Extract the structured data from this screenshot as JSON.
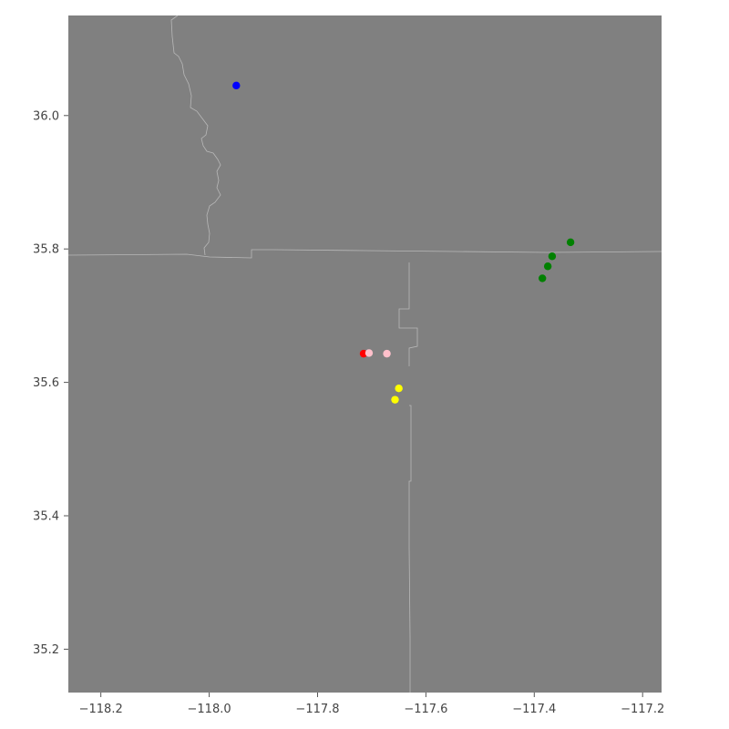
{
  "chart_data": {
    "type": "scatter",
    "title": "",
    "xlabel": "",
    "ylabel": "",
    "xlim": [
      -118.26,
      -117.165
    ],
    "ylim": [
      35.135,
      36.15
    ],
    "grid": false,
    "background": "#808080",
    "x_ticks": [
      -118.2,
      -118.0,
      -117.8,
      -117.6,
      -117.4,
      -117.2
    ],
    "x_tick_labels": [
      "−118.2",
      "−118.0",
      "−117.8",
      "−117.6",
      "−117.4",
      "−117.2"
    ],
    "y_ticks": [
      35.2,
      35.4,
      35.6,
      35.8,
      36.0
    ],
    "y_tick_labels": [
      "35.2",
      "35.4",
      "35.6",
      "35.8",
      "36.0"
    ],
    "series": [
      {
        "color": "#0000ff",
        "points": [
          [
            -117.95,
            36.045
          ]
        ]
      },
      {
        "color": "#008000",
        "points": [
          [
            -117.333,
            35.81
          ],
          [
            -117.367,
            35.789
          ],
          [
            -117.375,
            35.774
          ],
          [
            -117.385,
            35.756
          ]
        ]
      },
      {
        "color": "#ff0000",
        "points": [
          [
            -117.715,
            35.643
          ]
        ]
      },
      {
        "color": "#ffc0cb",
        "points": [
          [
            -117.705,
            35.644
          ],
          [
            -117.672,
            35.643
          ]
        ]
      },
      {
        "color": "#ffff00",
        "points": [
          [
            -117.65,
            35.591
          ],
          [
            -117.657,
            35.574
          ]
        ]
      }
    ]
  }
}
